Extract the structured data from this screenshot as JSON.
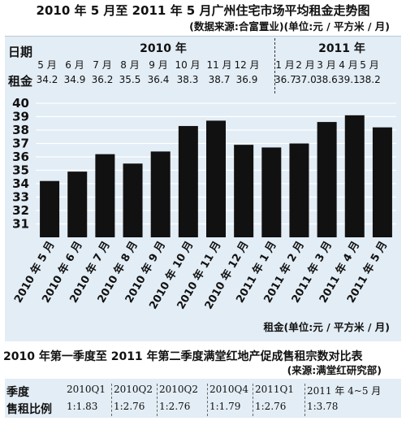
{
  "header": {
    "title": "2010 年 5 月至 2011 年 5 月广州住宅市场平均租金走势图",
    "subtitle": "(数据来源:合富置业)(单位:元 / 平方米 / 月)"
  },
  "table1": {
    "row_month_label": "日期",
    "row_rent_label": "租金",
    "year_2010": "2010 年",
    "year_2011": "2011 年",
    "months_2010": [
      "5 月",
      "6 月",
      "7 月",
      "8 月",
      "9 月",
      "10 月",
      "11 月",
      "12 月"
    ],
    "months_2011": [
      "1 月",
      "2 月",
      "3 月",
      "4 月",
      "5 月"
    ],
    "rents_2010": [
      "34.2",
      "34.9",
      "36.2",
      "35.5",
      "36.4",
      "38.3",
      "38.7",
      "36.9"
    ],
    "rents_2011": [
      "36.7",
      "37.0",
      "38.6",
      "39.1",
      "38.2"
    ]
  },
  "chart_data": {
    "type": "bar",
    "categories": [
      "2010 年 5 月",
      "2010 年 6 月",
      "2010 年 7 月",
      "2010 年 8 月",
      "2010 年 9 月",
      "2010 年 10 月",
      "2010 年 11 月",
      "2010 年 12 月",
      "2011 年 1 月",
      "2011 年 2 月",
      "2011 年 3 月",
      "2011 年 4 月",
      "2011 年 5 月"
    ],
    "values": [
      34.2,
      34.9,
      36.2,
      35.5,
      36.4,
      38.3,
      38.7,
      36.9,
      36.7,
      37.0,
      38.6,
      39.1,
      38.2
    ],
    "yticks": [
      "31",
      "32",
      "33",
      "34",
      "35",
      "36",
      "37",
      "38",
      "39",
      "40"
    ],
    "ylim": [
      30,
      40
    ],
    "ylabel": "租金(单位:元 / 平方米 / 月)",
    "bar_color": "#111111",
    "background": "#e3edf5",
    "grid": true
  },
  "table2": {
    "title": "2010 年第一季度至 2011 年第二季度满堂红地产促成售租宗数对比表",
    "subtitle": "(来源:满堂红研究部)",
    "row_period_label": "季度",
    "row_ratio_label": "售租比例",
    "periods": [
      "2010Q1",
      "2010Q2",
      "2010Q2",
      "2010Q4",
      "2011Q1",
      "2011 年 4~5 月"
    ],
    "ratios": [
      "1:1.83",
      "1:2.76",
      "1:2.76",
      "1:1.79",
      "1:2.76",
      "1:3.78"
    ]
  }
}
